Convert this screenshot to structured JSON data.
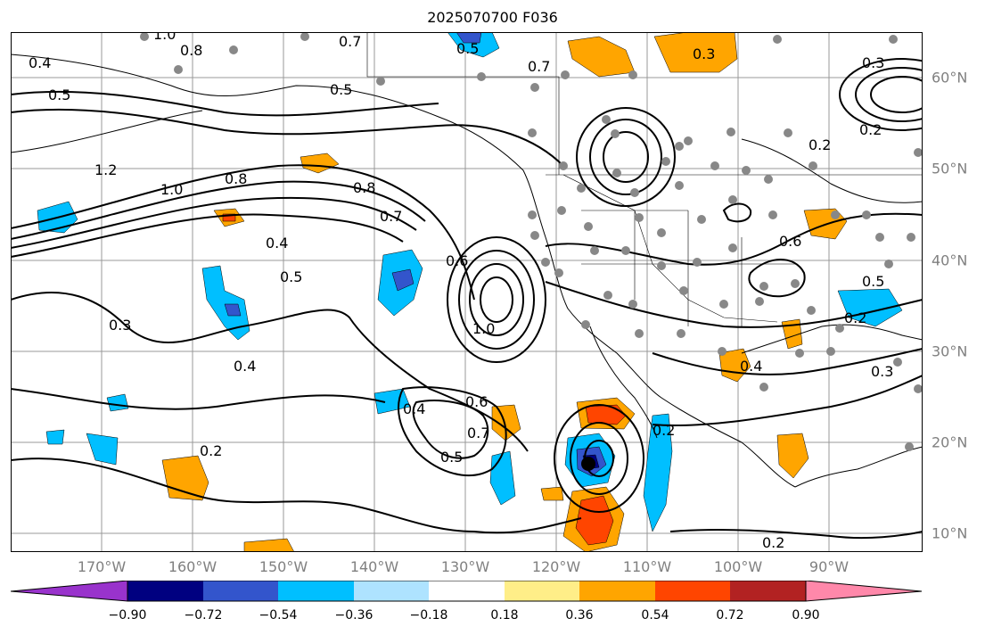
{
  "title": "2025070700 F036",
  "map": {
    "projection": "equirectangular",
    "lon_range": [
      -180,
      -80
    ],
    "lat_range": [
      8,
      65
    ],
    "gridlines": true,
    "lon_labels": [
      "170°W",
      "160°W",
      "150°W",
      "140°W",
      "130°W",
      "120°W",
      "110°W",
      "100°W",
      "90°W"
    ],
    "lat_labels": [
      "60°N",
      "50°N",
      "40°N",
      "30°N",
      "20°N",
      "10°N"
    ]
  },
  "contour_labels": [
    "1.0",
    "0.8",
    "0.7",
    "0.5",
    "0.4",
    "0.5",
    "1.2",
    "1.0",
    "0.8",
    "0.8",
    "0.7",
    "0.4",
    "0.5",
    "0.6",
    "1.0",
    "0.3",
    "0.4",
    "0.4",
    "0.6",
    "0.7",
    "0.5",
    "0.2",
    "0.2",
    "0.3",
    "0.2",
    "0.6",
    "0.5",
    "0.2",
    "0.3",
    "0.2",
    "0.3",
    "0.2",
    "0.4",
    "0.7",
    "0.5"
  ],
  "colorbar": {
    "ticks": [
      "−0.90",
      "−0.72",
      "−0.54",
      "−0.36",
      "−0.18",
      "0.18",
      "0.36",
      "0.54",
      "0.72",
      "0.90"
    ],
    "colors": [
      "#9933cc",
      "#000080",
      "#3355cc",
      "#00bfff",
      "#aee3ff",
      "#ffffff",
      "#ffee88",
      "#ffa500",
      "#ff4500",
      "#b22222",
      "#ff88aa"
    ]
  },
  "fill_colors": {
    "neg_light": "#00bfff",
    "neg_mid": "#3355cc",
    "neg_dark": "#000080",
    "pos_light": "#ffa500",
    "pos_mid": "#ff4500",
    "pos_dark": "#b22222"
  }
}
